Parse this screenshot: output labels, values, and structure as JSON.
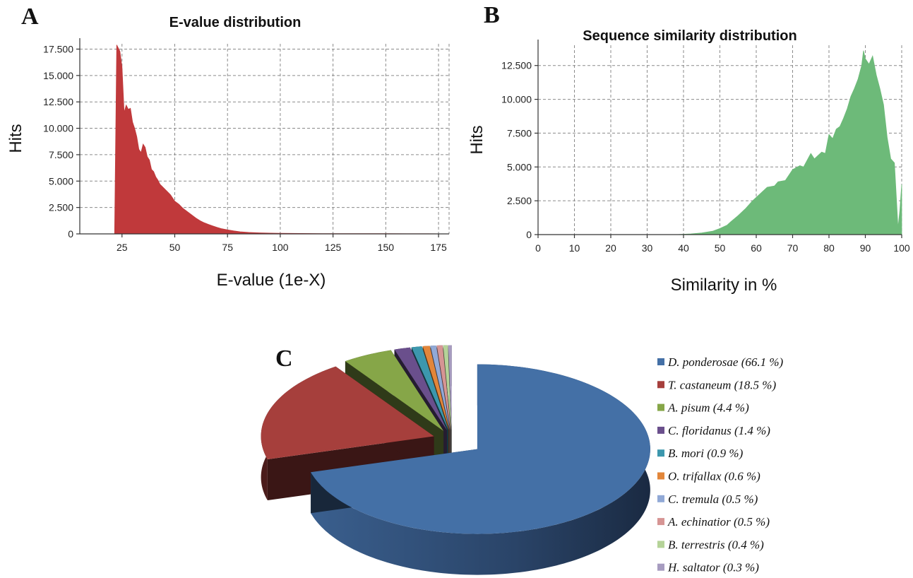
{
  "panels": {
    "a_label": "A",
    "b_label": "B",
    "c_label": "C"
  },
  "chart_data": [
    {
      "type": "area",
      "title": "E-value distribution",
      "xlabel": "E-value (1e-X)",
      "ylabel": "Hits",
      "xlim": [
        5,
        180
      ],
      "ylim": [
        0,
        18000
      ],
      "x_ticks": [
        25,
        50,
        75,
        100,
        125,
        150,
        175
      ],
      "x_tick_labels": [
        "25",
        "50",
        "75",
        "100",
        "125",
        "150",
        "175"
      ],
      "y_ticks": [
        0,
        2500,
        5000,
        7500,
        10000,
        12500,
        15000,
        17500
      ],
      "y_tick_labels": [
        "0",
        "2.500",
        "5.000",
        "7.500",
        "10.000",
        "12.500",
        "15.000",
        "17.500"
      ],
      "grid": true,
      "color": "#c0393b",
      "x": [
        21.5,
        22.5,
        24,
        25,
        26,
        27,
        28,
        29,
        30,
        31,
        32,
        33,
        34,
        35,
        36,
        37,
        38,
        39,
        40,
        41,
        42,
        43,
        44,
        45,
        46,
        47,
        48,
        50,
        52,
        54,
        56,
        58,
        60,
        62,
        64,
        66,
        68,
        70,
        72,
        75,
        78,
        81,
        85,
        90,
        95,
        100,
        110,
        120,
        130,
        140,
        150,
        160,
        170,
        175
      ],
      "y": [
        0,
        17900,
        17300,
        15800,
        11500,
        12200,
        11800,
        11900,
        10600,
        10000,
        9200,
        8000,
        7700,
        8500,
        8200,
        7300,
        7000,
        6100,
        5900,
        5400,
        5100,
        4700,
        4500,
        4300,
        4100,
        3900,
        3700,
        3100,
        2800,
        2400,
        2100,
        1800,
        1500,
        1250,
        1050,
        900,
        750,
        620,
        500,
        380,
        280,
        200,
        140,
        100,
        75,
        55,
        40,
        30,
        25,
        20,
        18,
        16,
        12,
        10
      ]
    },
    {
      "type": "area",
      "title": "Sequence similarity distribution",
      "xlabel": "Similarity in %",
      "ylabel": "Hits",
      "xlim": [
        0,
        100
      ],
      "ylim": [
        0,
        14000
      ],
      "x_ticks": [
        0,
        10,
        20,
        30,
        40,
        50,
        60,
        70,
        80,
        90,
        100
      ],
      "x_tick_labels": [
        "0",
        "10",
        "20",
        "30",
        "40",
        "50",
        "60",
        "70",
        "80",
        "90",
        "100"
      ],
      "y_ticks": [
        0,
        2500,
        5000,
        7500,
        10000,
        12500
      ],
      "y_tick_labels": [
        "0",
        "2.500",
        "5.000",
        "7.500",
        "10.000",
        "12.500"
      ],
      "grid": true,
      "color": "#6dba79",
      "x": [
        0,
        38,
        42,
        45,
        48,
        50,
        52,
        53,
        55,
        57,
        59,
        61,
        63,
        65,
        66,
        68,
        70,
        72,
        73,
        75,
        76,
        78,
        79,
        80,
        81,
        82,
        83,
        84,
        85,
        86,
        87,
        88,
        89,
        89.5,
        90,
        91,
        92,
        93,
        94,
        95,
        96,
        97,
        98,
        99,
        99.5,
        100
      ],
      "y": [
        0,
        0,
        50,
        120,
        250,
        450,
        700,
        950,
        1400,
        1900,
        2500,
        3000,
        3500,
        3600,
        3900,
        4000,
        4800,
        5100,
        5000,
        6000,
        5600,
        6100,
        6000,
        7400,
        7100,
        7800,
        8000,
        8600,
        9300,
        10200,
        10800,
        11500,
        12500,
        13600,
        13000,
        12600,
        13200,
        11800,
        10800,
        9600,
        7200,
        5600,
        5300,
        500,
        1800,
        3700
      ]
    },
    {
      "type": "pie",
      "labels": [
        "D. ponderosae (66.1 %)",
        "T. castaneum (18.5 %)",
        "A. pisum (4.4 %)",
        "C. floridanus (1.4 %)",
        "B. mori (0.9 %)",
        "O. trifallax (0.6 %)",
        "C. tremula (0.5 %)",
        "A. echinatior (0.5 %)",
        "B. terrestris (0.4 %)",
        "H. saltator (0.3 %)"
      ],
      "values": [
        66.1,
        18.5,
        4.4,
        1.4,
        0.9,
        0.6,
        0.5,
        0.5,
        0.4,
        0.3
      ],
      "colors": [
        "#4470a6",
        "#a63f3c",
        "#86a648",
        "#6a4f8c",
        "#3c97ad",
        "#e2863a",
        "#91a9d6",
        "#d69594",
        "#b5d398",
        "#a79cc0"
      ],
      "legend_position": "right",
      "style": "3d-exploded"
    }
  ]
}
